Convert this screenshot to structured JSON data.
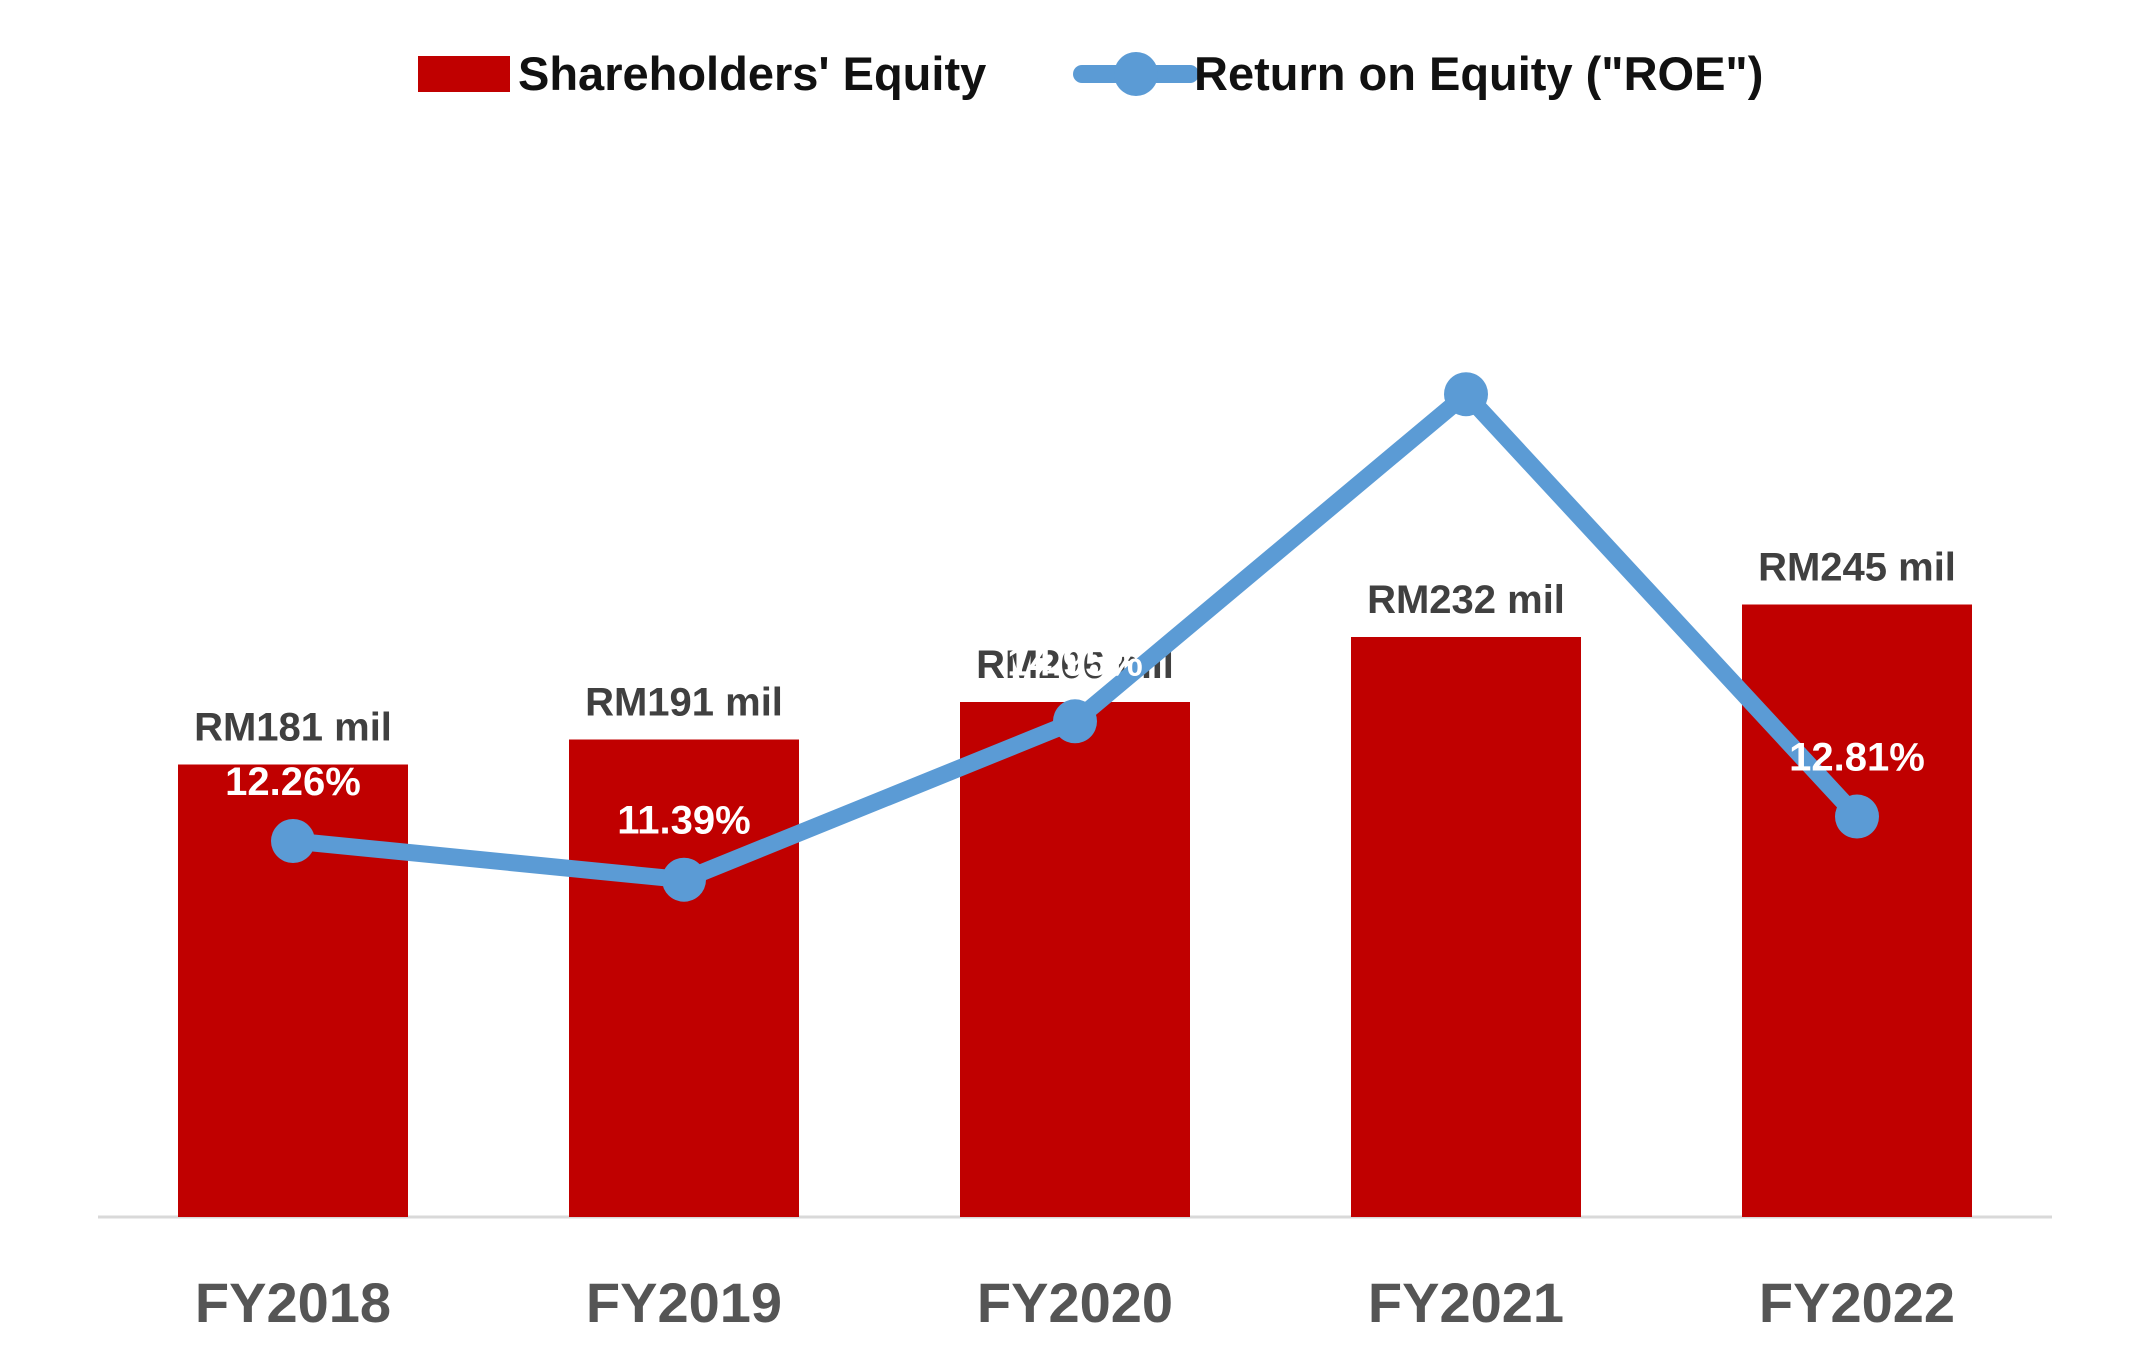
{
  "chart_data": {
    "type": "bar",
    "categories": [
      "FY2018",
      "FY2019",
      "FY2020",
      "FY2021",
      "FY2022"
    ],
    "series": [
      {
        "name": "Shareholders' Equity",
        "kind": "bar",
        "color": "#C00000",
        "values": [
          181,
          191,
          206,
          232,
          245
        ],
        "labels": [
          "RM181 mil",
          "RM191 mil",
          "RM206 mil",
          "RM232 mil",
          "RM245 mil"
        ]
      },
      {
        "name": "Return on Equity (\"ROE\")",
        "kind": "line",
        "color": "#5B9BD5",
        "values": [
          12.26,
          11.39,
          14.95,
          22.3,
          12.81
        ],
        "labels": [
          "12.26%",
          "11.39%",
          "14.95%",
          "",
          "12.81%"
        ]
      }
    ],
    "legend": {
      "position": "top",
      "items": [
        "Shareholders' Equity",
        "Return on Equity (\"ROE\")"
      ]
    },
    "ylim_bar": [
      0,
      250
    ],
    "ylim_line": [
      0,
      24
    ],
    "grid": false
  }
}
